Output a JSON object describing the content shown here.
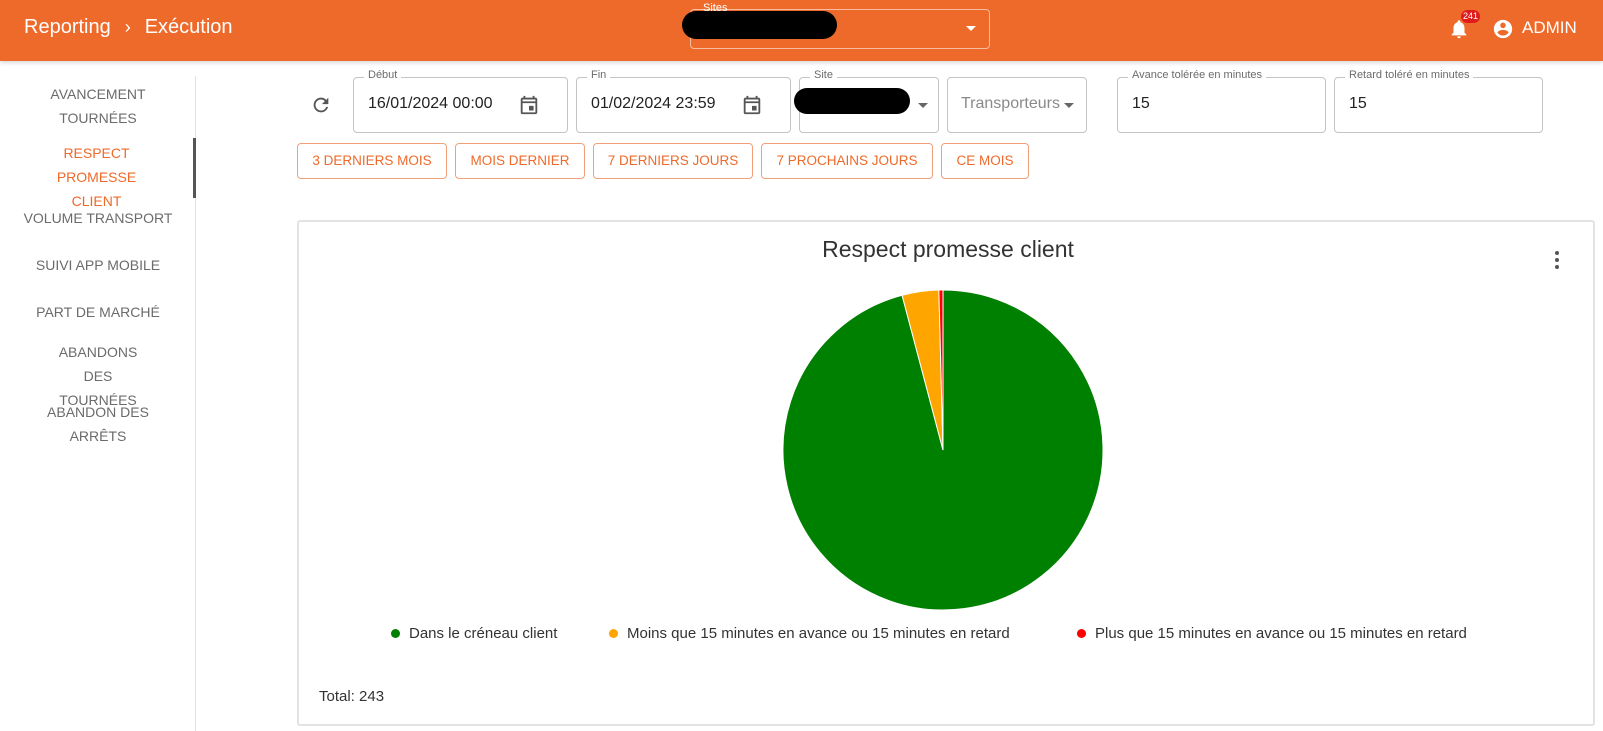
{
  "header": {
    "breadcrumb": [
      "Reporting",
      "Exécution"
    ],
    "separator": "›",
    "sites_label": "Sites",
    "notification_count": "241",
    "user": "ADMIN"
  },
  "sidebar": {
    "items": [
      {
        "label": "AVANCEMENT TOURNÉES",
        "active": false
      },
      {
        "label": "RESPECT PROMESSE CLIENT",
        "active": true
      },
      {
        "label": "VOLUME TRANSPORT",
        "active": false
      },
      {
        "label": "SUIVI APP MOBILE",
        "active": false
      },
      {
        "label": "PART DE MARCHÉ",
        "active": false
      },
      {
        "label": "ABANDONS DES TOURNÉES",
        "active": false
      },
      {
        "label": "ABANDON DES ARRÊTS",
        "active": false
      }
    ]
  },
  "filters": {
    "debut": {
      "label": "Début",
      "value": "16/01/2024 00:00"
    },
    "fin": {
      "label": "Fin",
      "value": "01/02/2024 23:59"
    },
    "site": {
      "label": "Site"
    },
    "transporteurs": {
      "placeholder": "Transporteurs"
    },
    "avance": {
      "label": "Avance tolérée en minutes",
      "value": "15"
    },
    "retard": {
      "label": "Retard toléré en minutes",
      "value": "15"
    },
    "quick_ranges": [
      "3 DERNIERS MOIS",
      "MOIS DERNIER",
      "7 DERNIERS JOURS",
      "7 PROCHAINS JOURS",
      "CE MOIS"
    ]
  },
  "card": {
    "total_text": "Total: 243"
  },
  "colors": {
    "brand": "#ee6a2a",
    "on_time": "#008000",
    "slightly_off": "#ffa500",
    "late": "#ff0000"
  },
  "chart_data": {
    "type": "pie",
    "title": "Respect promesse client",
    "categories": [
      "Dans le créneau client",
      "Moins que 15 minutes en avance ou 15 minutes en retard",
      "Plus que 15 minutes en avance ou 15 minutes en retard"
    ],
    "values": [
      233,
      9,
      1
    ],
    "colors": [
      "#008000",
      "#ffa500",
      "#ff0000"
    ],
    "legend": "bottom"
  }
}
